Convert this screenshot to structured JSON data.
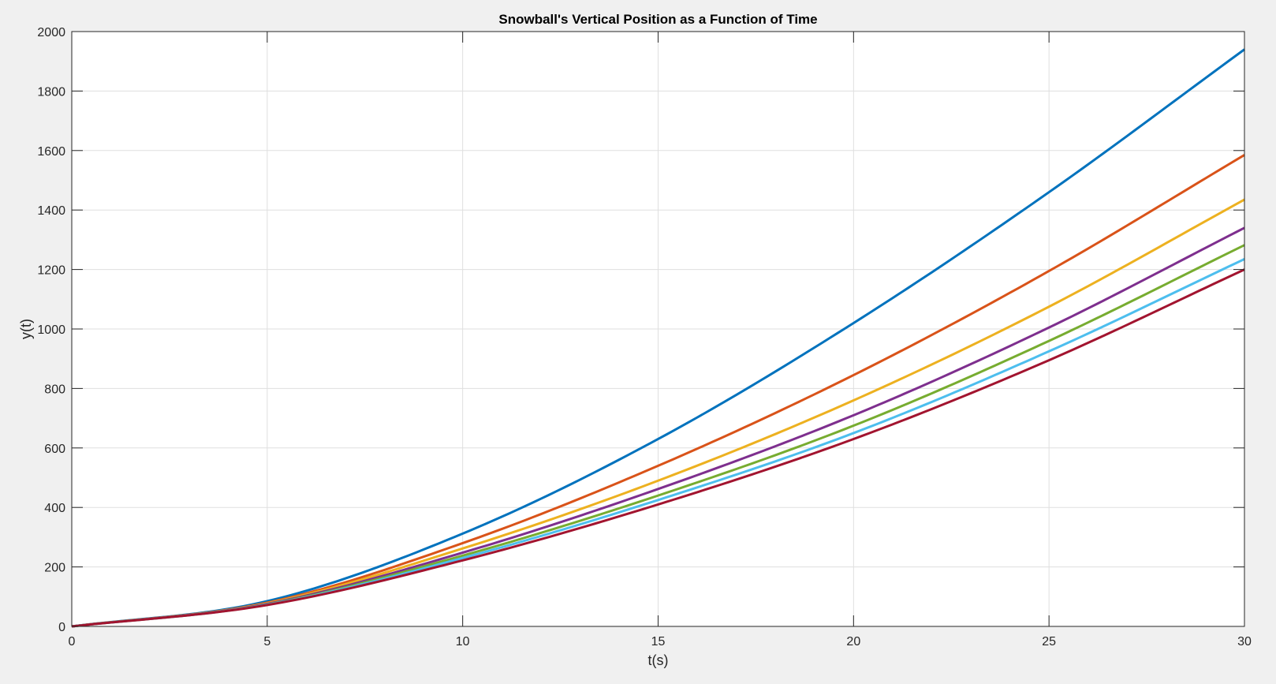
{
  "chart_data": {
    "type": "line",
    "title": "Snowball's Vertical Position as a Function of Time",
    "xlabel": "t(s)",
    "ylabel": "y(t)",
    "xlim": [
      0,
      30
    ],
    "ylim": [
      0,
      2000
    ],
    "x_ticks": [
      0,
      5,
      10,
      15,
      20,
      25,
      30
    ],
    "y_ticks": [
      0,
      200,
      400,
      600,
      800,
      1000,
      1200,
      1400,
      1600,
      1800,
      2000
    ],
    "grid": true,
    "legend": "none",
    "x": [
      0,
      5,
      10,
      15,
      20,
      25,
      30
    ],
    "series": [
      {
        "color": "#0072bd",
        "values": [
          0,
          85,
          312,
          630,
          1020,
          1460,
          1940
        ]
      },
      {
        "color": "#d95319",
        "values": [
          0,
          80,
          280,
          540,
          845,
          1195,
          1585
        ]
      },
      {
        "color": "#edb120",
        "values": [
          0,
          78,
          262,
          490,
          760,
          1075,
          1435
        ]
      },
      {
        "color": "#7e2f8e",
        "values": [
          0,
          76,
          248,
          462,
          710,
          1005,
          1340
        ]
      },
      {
        "color": "#77ac30",
        "values": [
          0,
          74,
          238,
          440,
          675,
          960,
          1282
        ]
      },
      {
        "color": "#4dbeee",
        "values": [
          0,
          73,
          230,
          425,
          650,
          925,
          1235
        ]
      },
      {
        "color": "#a2142f",
        "values": [
          0,
          72,
          222,
          410,
          630,
          895,
          1200
        ]
      }
    ]
  }
}
